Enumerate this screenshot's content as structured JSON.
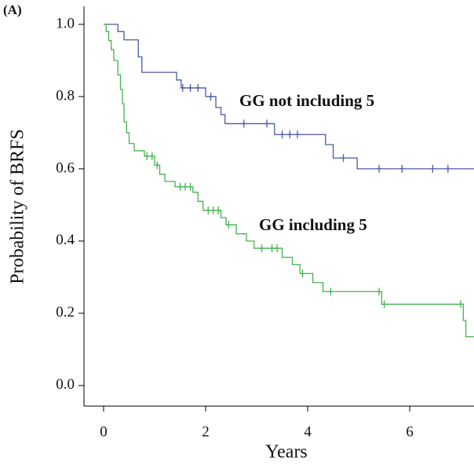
{
  "chart_data": {
    "type": "line",
    "step": "post",
    "panel_label": "(A)",
    "xlabel": "Years",
    "ylabel": "Probability of BRFS",
    "xlim": [
      -0.385,
      7.26
    ],
    "ylim": [
      -0.057,
      1.05
    ],
    "xticks": [
      0,
      2,
      4,
      6
    ],
    "yticks": [
      {
        "value": 0,
        "label": "0.0"
      },
      0.2,
      0.4,
      0.6,
      0.8,
      {
        "value": 1,
        "label": "1.0"
      }
    ],
    "annotations": [
      "GG not including 5",
      "GG including 5"
    ],
    "series": [
      {
        "name": "GG not including 5",
        "color": "#4a5aa8",
        "x": [
          0,
          0.28,
          0.4,
          0.68,
          0.75,
          1.43,
          1.52,
          2.0,
          2.2,
          2.3,
          2.38,
          3.35,
          4.35,
          4.5,
          4.97
        ],
        "values": [
          1.0,
          0.98,
          0.957,
          0.91,
          0.867,
          0.846,
          0.824,
          0.8,
          0.77,
          0.75,
          0.725,
          0.695,
          0.667,
          0.63,
          0.6
        ],
        "censor_x": [
          1.55,
          1.7,
          1.85,
          2.1,
          2.75,
          3.2,
          3.5,
          3.65,
          3.8,
          4.7,
          5.4,
          5.85,
          6.45,
          6.75
        ],
        "censor_values": [
          0.824,
          0.824,
          0.824,
          0.8,
          0.725,
          0.725,
          0.695,
          0.695,
          0.695,
          0.63,
          0.6,
          0.6,
          0.6,
          0.6
        ]
      },
      {
        "name": "GG including 5",
        "color": "#45b24f",
        "x": [
          0,
          0.05,
          0.1,
          0.15,
          0.2,
          0.28,
          0.33,
          0.37,
          0.4,
          0.45,
          0.5,
          0.6,
          0.8,
          1.0,
          1.1,
          1.2,
          1.4,
          1.75,
          1.85,
          1.95,
          2.3,
          2.4,
          2.6,
          2.8,
          2.95,
          3.5,
          3.7,
          3.85,
          4.1,
          4.3,
          5.45,
          7.05,
          7.1
        ],
        "values": [
          1.0,
          0.98,
          0.955,
          0.93,
          0.9,
          0.86,
          0.82,
          0.78,
          0.73,
          0.7,
          0.67,
          0.65,
          0.635,
          0.61,
          0.585,
          0.565,
          0.55,
          0.535,
          0.51,
          0.485,
          0.465,
          0.445,
          0.42,
          0.4,
          0.38,
          0.355,
          0.335,
          0.31,
          0.285,
          0.26,
          0.225,
          0.18,
          0.135
        ],
        "censor_x": [
          0.85,
          0.95,
          1.05,
          1.5,
          1.6,
          1.7,
          2.05,
          2.15,
          2.25,
          2.45,
          3.1,
          3.3,
          3.4,
          3.9,
          4.45,
          5.4,
          5.5,
          7.0
        ],
        "censor_values": [
          0.635,
          0.635,
          0.61,
          0.55,
          0.55,
          0.55,
          0.485,
          0.485,
          0.485,
          0.445,
          0.38,
          0.38,
          0.38,
          0.31,
          0.26,
          0.26,
          0.225,
          0.225
        ]
      }
    ]
  }
}
